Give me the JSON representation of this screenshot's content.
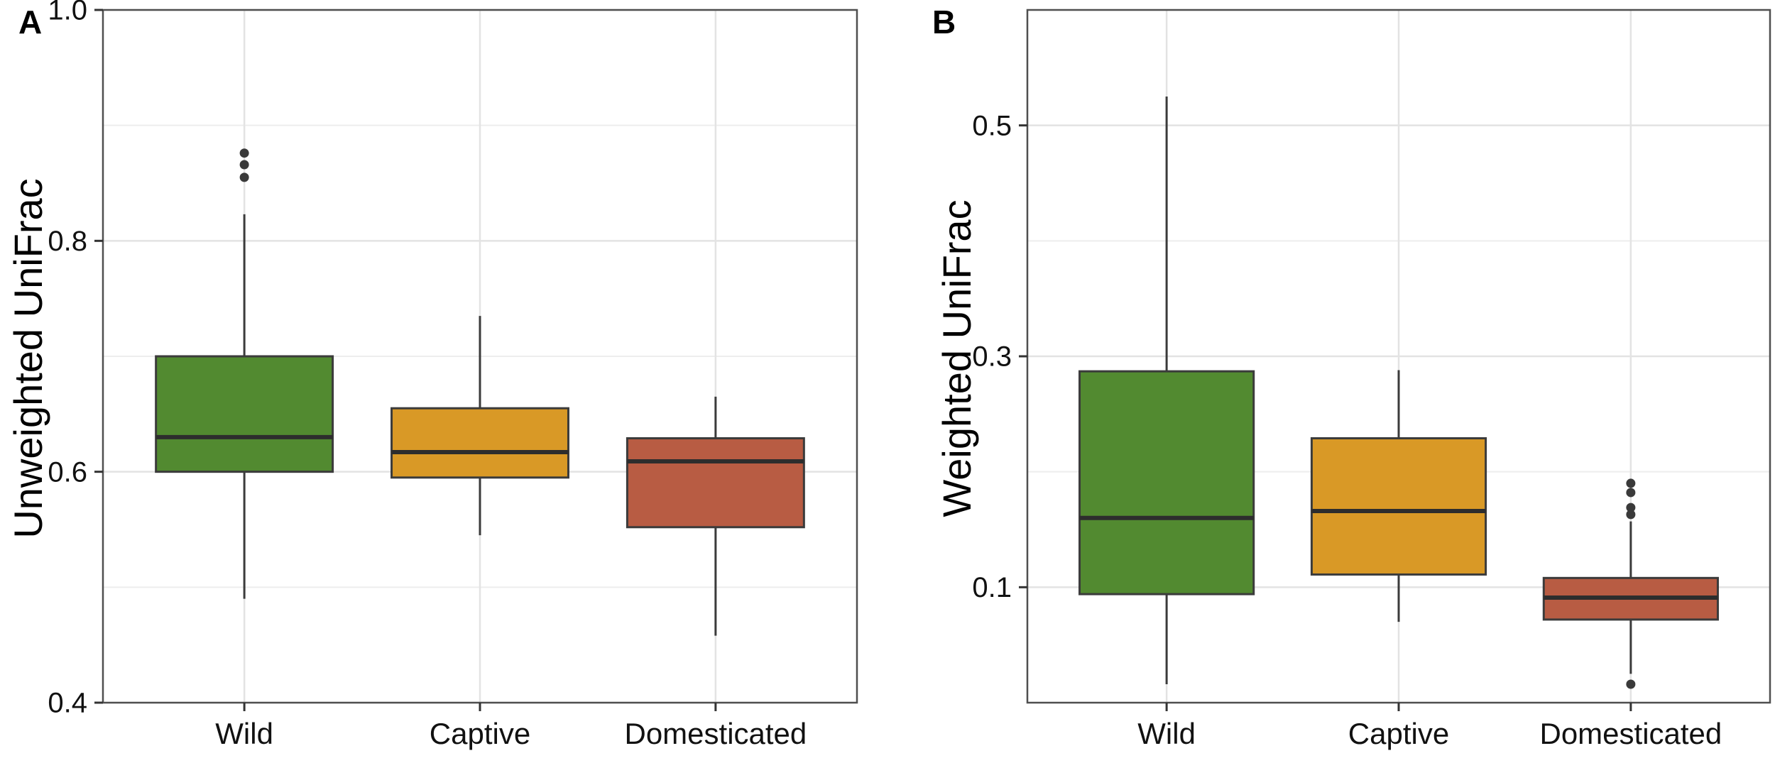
{
  "figure": {
    "background": "#FFFFFF",
    "panels": [
      {
        "panel_label": "A",
        "y_axis_title": "Unweighted UniFrac",
        "chart_index": 0
      },
      {
        "panel_label": "B",
        "y_axis_title": "Weighted UniFrac",
        "chart_index": 1
      }
    ],
    "colors": {
      "box_fill_wild": "#528A30",
      "box_fill_captive": "#D99926",
      "box_fill_domesticated": "#B85C43",
      "box_stroke": "#3B3B3B",
      "median_line": "#2D2D2D",
      "whisker": "#3B3B3B",
      "outlier_dot": "#3A3A3A",
      "panel_border": "#4F4F4F",
      "grid_major": "#E3E3E3",
      "grid_minor": "#EDEDED",
      "tick_mark": "#333333",
      "tick_text": "#111111"
    }
  },
  "chart_data": [
    {
      "type": "boxplot",
      "title": "",
      "xlabel": "",
      "ylabel": "Unweighted UniFrac",
      "categories": [
        "Wild",
        "Captive",
        "Domesticated"
      ],
      "ylim": [
        0.4,
        1.0
      ],
      "yticks": [
        {
          "value": 0.4,
          "label": "0.4"
        },
        {
          "value": 0.6,
          "label": "0.6"
        },
        {
          "value": 0.8,
          "label": "0.8"
        },
        {
          "value": 1.0,
          "label": "1.0"
        }
      ],
      "yminor": [
        0.5,
        0.7,
        0.9
      ],
      "grid": true,
      "legend_position": "none",
      "series": [
        {
          "name": "Wild",
          "color_key": "box_fill_wild",
          "whisker_low": 0.49,
          "q1": 0.6,
          "median": 0.63,
          "q3": 0.7,
          "whisker_high": 0.823,
          "outliers": [
            0.855,
            0.866,
            0.876
          ]
        },
        {
          "name": "Captive",
          "color_key": "box_fill_captive",
          "whisker_low": 0.545,
          "q1": 0.595,
          "median": 0.617,
          "q3": 0.655,
          "whisker_high": 0.735,
          "outliers": []
        },
        {
          "name": "Domesticated",
          "color_key": "box_fill_domesticated",
          "whisker_low": 0.458,
          "q1": 0.552,
          "median": 0.609,
          "q3": 0.629,
          "whisker_high": 0.665,
          "outliers": []
        }
      ]
    },
    {
      "type": "boxplot",
      "title": "",
      "xlabel": "",
      "ylabel": "Weighted UniFrac",
      "categories": [
        "Wild",
        "Captive",
        "Domesticated"
      ],
      "ylim": [
        0.0,
        0.6
      ],
      "yticks": [
        {
          "value": 0.1,
          "label": "0.1"
        },
        {
          "value": 0.3,
          "label": "0.3"
        },
        {
          "value": 0.5,
          "label": "0.5"
        }
      ],
      "yminor": [
        0.2,
        0.4,
        0.6
      ],
      "grid": true,
      "legend_position": "none",
      "series": [
        {
          "name": "Wild",
          "color_key": "box_fill_wild",
          "whisker_low": 0.016,
          "q1": 0.094,
          "median": 0.16,
          "q3": 0.287,
          "whisker_high": 0.525,
          "outliers": []
        },
        {
          "name": "Captive",
          "color_key": "box_fill_captive",
          "whisker_low": 0.07,
          "q1": 0.111,
          "median": 0.166,
          "q3": 0.229,
          "whisker_high": 0.288,
          "outliers": []
        },
        {
          "name": "Domesticated",
          "color_key": "box_fill_domesticated",
          "whisker_low": 0.025,
          "q1": 0.072,
          "median": 0.091,
          "q3": 0.108,
          "whisker_high": 0.157,
          "outliers": [
            0.19,
            0.182,
            0.169,
            0.163,
            0.016
          ]
        }
      ]
    }
  ]
}
